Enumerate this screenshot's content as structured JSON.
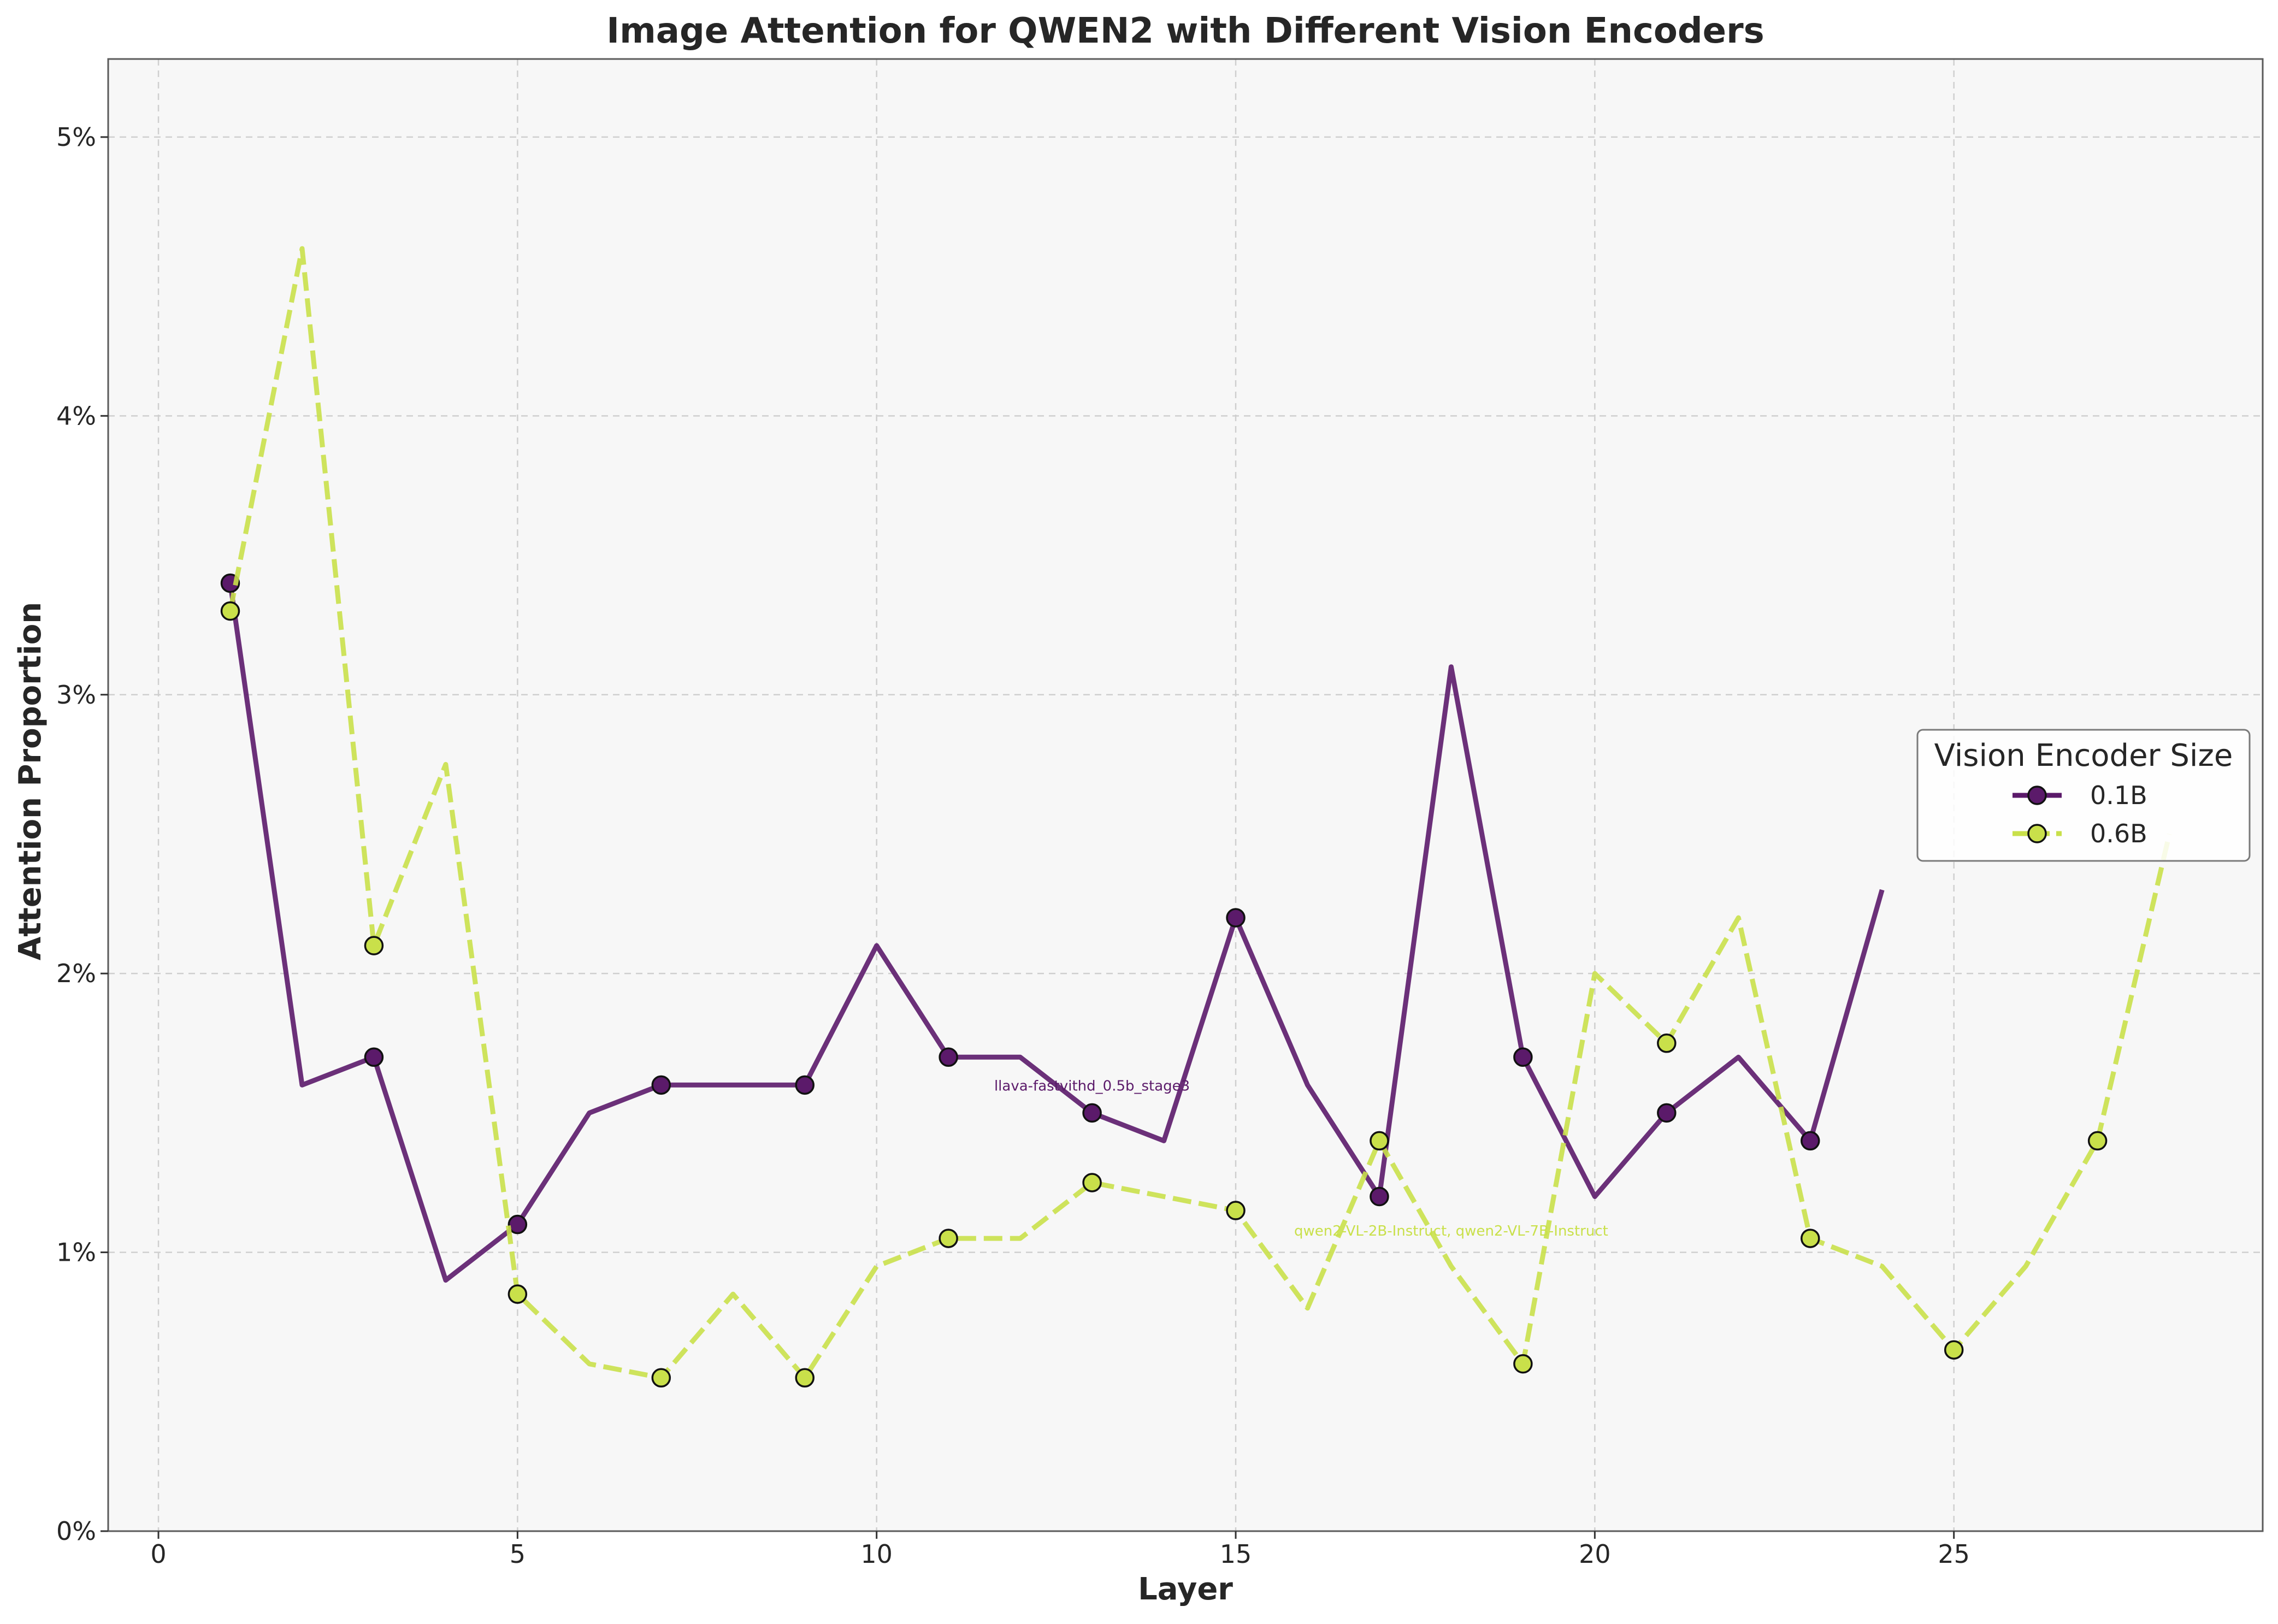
{
  "chart_data": {
    "type": "line",
    "title": "Image Attention for QWEN2 with Different Vision Encoders",
    "xlabel": "Layer",
    "ylabel": "Attention Proportion",
    "xlim": [
      -0.7,
      29.3
    ],
    "ylim": [
      0,
      5.28
    ],
    "x_ticks": [
      0,
      5,
      10,
      15,
      20,
      25
    ],
    "y_ticks": [
      0,
      1,
      2,
      3,
      4,
      5
    ],
    "x_tick_labels": [
      "0",
      "5",
      "10",
      "15",
      "20",
      "25"
    ],
    "y_tick_labels": [
      "0%",
      "1%",
      "2%",
      "3%",
      "4%",
      "5%"
    ],
    "grid": true,
    "legend": {
      "title": "Vision Encoder Size",
      "placement": "center-right"
    },
    "series": [
      {
        "name": "0.1B",
        "color": "#5b1a6a",
        "line_style": "solid",
        "x": [
          1,
          2,
          3,
          4,
          5,
          6,
          7,
          8,
          9,
          10,
          11,
          12,
          13,
          14,
          15,
          16,
          17,
          18,
          19,
          20,
          21,
          22,
          23,
          24
        ],
        "values": [
          3.4,
          1.6,
          1.7,
          0.9,
          1.1,
          1.5,
          1.6,
          1.6,
          1.6,
          2.1,
          1.7,
          1.7,
          1.5,
          1.4,
          2.2,
          1.6,
          1.2,
          3.1,
          1.7,
          1.2,
          1.5,
          1.7,
          1.4,
          2.3
        ],
        "marker_x": [
          1,
          3,
          5,
          7,
          9,
          11,
          13,
          15,
          17,
          19,
          21,
          23
        ],
        "annotation": {
          "text": "llava-fastvithd_0.5b_stage3",
          "x": 13,
          "y": 1.58
        }
      },
      {
        "name": "0.6B",
        "color": "#c9e04a",
        "line_style": "dashed",
        "x": [
          1,
          2,
          3,
          4,
          5,
          6,
          7,
          8,
          9,
          10,
          11,
          12,
          13,
          14,
          15,
          16,
          17,
          18,
          19,
          20,
          21,
          22,
          23,
          24,
          25,
          26,
          27,
          28
        ],
        "values": [
          3.3,
          4.6,
          2.1,
          2.75,
          0.85,
          0.6,
          0.55,
          0.85,
          0.55,
          0.95,
          1.05,
          1.05,
          1.25,
          1.2,
          1.15,
          0.8,
          1.4,
          0.95,
          0.6,
          2.0,
          1.75,
          2.2,
          1.05,
          0.95,
          0.65,
          0.95,
          1.4,
          2.5
        ],
        "marker_x": [
          1,
          3,
          5,
          7,
          9,
          11,
          13,
          15,
          17,
          19,
          21,
          23,
          25,
          27
        ],
        "annotation": {
          "text": "qwen2-VL-2B-Instruct, qwen2-VL-7B-Instruct",
          "x": 18,
          "y": 1.06
        }
      }
    ]
  }
}
